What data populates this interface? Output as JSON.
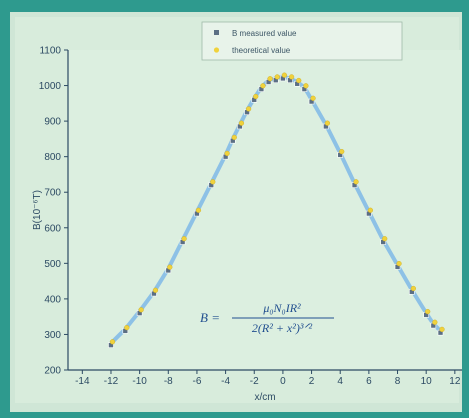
{
  "chart_data": {
    "type": "scatter",
    "xlabel": "x/cm",
    "ylabel": "B(10⁻⁶T)",
    "xlim": [
      -15,
      12.5
    ],
    "ylim": [
      200,
      1100
    ],
    "xticks": [
      -14,
      -12,
      -10,
      -8,
      -6,
      -4,
      -2,
      0,
      2,
      4,
      6,
      8,
      10,
      12
    ],
    "yticks": [
      200,
      300,
      400,
      500,
      600,
      700,
      800,
      900,
      1000,
      1100
    ],
    "legend_position": "top-right",
    "annotation": {
      "lhs": "B =",
      "numerator": "μ₀N₀IR²",
      "denominator": "2(R² + x²)³ᐟ²"
    },
    "series": [
      {
        "name": "B measured value",
        "marker": "square",
        "color": "#5b6f84",
        "x": [
          -12,
          -11,
          -10,
          -9,
          -8,
          -7,
          -6,
          -5,
          -4,
          -3.5,
          -3,
          -2.5,
          -2,
          -1.5,
          -1,
          -0.5,
          0,
          0.5,
          1,
          1.5,
          2,
          3,
          4,
          5,
          6,
          7,
          8,
          9,
          10,
          10.5,
          11
        ],
        "y": [
          270,
          310,
          360,
          415,
          480,
          560,
          640,
          720,
          800,
          845,
          885,
          925,
          960,
          990,
          1010,
          1015,
          1020,
          1015,
          1005,
          990,
          955,
          885,
          805,
          720,
          640,
          560,
          490,
          420,
          355,
          325,
          305
        ]
      },
      {
        "name": "theoretical value",
        "marker": "dot",
        "color": "#f0d23c",
        "x": [
          -12,
          -11,
          -10,
          -9,
          -8,
          -7,
          -6,
          -5,
          -4,
          -3.5,
          -3,
          -2.5,
          -2,
          -1.5,
          -1,
          -0.5,
          0,
          0.5,
          1,
          1.5,
          2,
          3,
          4,
          5,
          6,
          7,
          8,
          9,
          10,
          10.5,
          11
        ],
        "y": [
          275,
          315,
          365,
          420,
          485,
          565,
          645,
          725,
          805,
          850,
          890,
          930,
          965,
          995,
          1015,
          1020,
          1025,
          1020,
          1010,
          995,
          960,
          890,
          810,
          725,
          645,
          565,
          495,
          425,
          360,
          330,
          310
        ]
      }
    ]
  }
}
